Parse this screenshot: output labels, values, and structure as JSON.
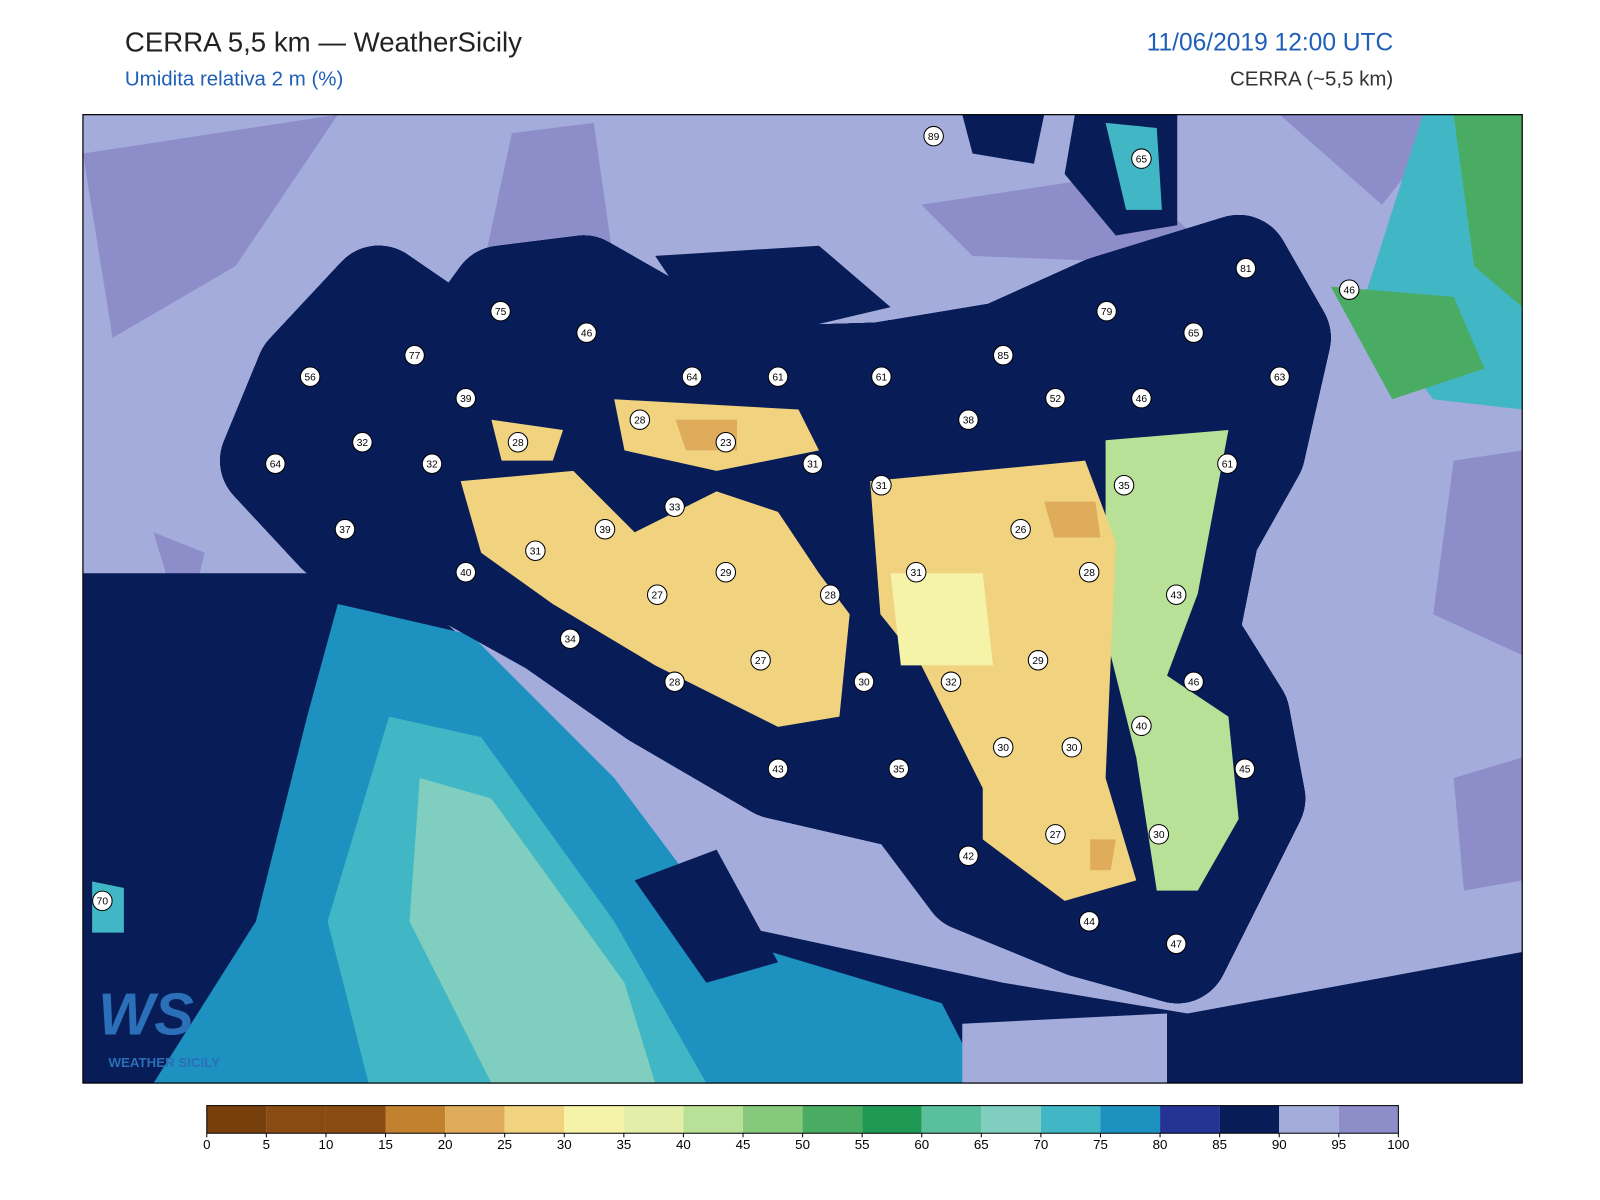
{
  "header": {
    "title": "CERRA 5,5 km — WeatherSicily",
    "subtitle": "Umidita relativa 2 m (%)",
    "datetime": "11/06/2019 12:00 UTC",
    "model": "CERRA (~5,5 km)"
  },
  "logo": {
    "mark": "WS",
    "text": "WEATHER SICILY"
  },
  "stations": [
    89,
    65,
    81,
    46,
    75,
    46,
    79,
    65,
    77,
    85,
    56,
    64,
    61,
    61,
    63,
    39,
    52,
    46,
    38,
    28,
    32,
    28,
    23,
    32,
    64,
    31,
    61,
    31,
    35,
    33,
    37,
    39,
    26,
    31,
    40,
    29,
    31,
    28,
    27,
    28,
    43,
    34,
    29,
    27,
    30,
    32,
    28,
    46,
    40,
    30,
    30,
    45,
    43,
    35,
    27,
    30,
    42,
    70,
    44,
    47
  ],
  "colorbar": {
    "levels": [
      0,
      5,
      10,
      15,
      20,
      25,
      30,
      35,
      40,
      45,
      50,
      55,
      60,
      65,
      70,
      75,
      80,
      85,
      90,
      95,
      100
    ],
    "colors": [
      "#773f0b",
      "#8a4b13",
      "#8a4b13",
      "#c1812f",
      "#deac5a",
      "#f0d27f",
      "#f5f3a8",
      "#e3efa8",
      "#b8e096",
      "#86c97c",
      "#4aac62",
      "#1e9a55",
      "#5abf9c",
      "#7fcebf",
      "#41b6c4",
      "#1d91c0",
      "#253494",
      "#081d58",
      "#a4acdc",
      "#8d8dca"
    ]
  }
}
